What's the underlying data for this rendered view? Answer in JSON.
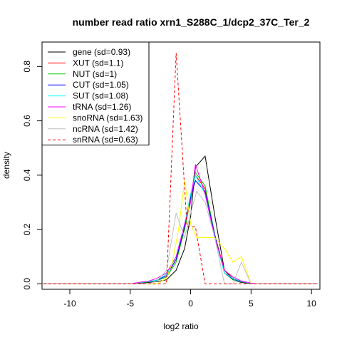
{
  "chart_data": {
    "type": "line",
    "title": "number read ratio xrn1_S288C_1/dcp2_37C_Ter_2",
    "xlabel": "log2 ratio",
    "ylabel": "density",
    "xlim": [
      -12.3,
      10.7
    ],
    "ylim": [
      -0.02,
      0.89
    ],
    "xticks": [
      -10,
      -5,
      0,
      5,
      10
    ],
    "yticks": [
      0.0,
      0.2,
      0.4,
      0.6,
      0.8
    ],
    "grid": false,
    "legend_position": "top-left",
    "series": [
      {
        "name": "gene (sd=0.93)",
        "color": "#000000",
        "dash": "solid",
        "points": [
          [
            -12.2,
            0.0
          ],
          [
            -5.0,
            0.0
          ],
          [
            -4.2,
            0.003
          ],
          [
            -3.5,
            0.005
          ],
          [
            -2.8,
            0.008
          ],
          [
            -2.0,
            0.015
          ],
          [
            -1.2,
            0.05
          ],
          [
            -0.5,
            0.13
          ],
          [
            0.0,
            0.25
          ],
          [
            0.4,
            0.43
          ],
          [
            1.2,
            0.47
          ],
          [
            2.0,
            0.25
          ],
          [
            2.8,
            0.05
          ],
          [
            3.5,
            0.015
          ],
          [
            4.2,
            0.005
          ],
          [
            5.0,
            0.001
          ],
          [
            5.5,
            0.0
          ],
          [
            10.5,
            0.0
          ]
        ]
      },
      {
        "name": "XUT (sd=1.1)",
        "color": "#ff0000",
        "dash": "solid",
        "points": [
          [
            -12.2,
            0.0
          ],
          [
            -5.0,
            0.0
          ],
          [
            -4.2,
            0.005
          ],
          [
            -3.5,
            0.008
          ],
          [
            -2.8,
            0.013
          ],
          [
            -2.0,
            0.03
          ],
          [
            -1.2,
            0.09
          ],
          [
            -0.5,
            0.2
          ],
          [
            0.0,
            0.33
          ],
          [
            0.4,
            0.4
          ],
          [
            1.2,
            0.35
          ],
          [
            2.0,
            0.18
          ],
          [
            2.8,
            0.05
          ],
          [
            3.5,
            0.02
          ],
          [
            4.2,
            0.01
          ],
          [
            5.0,
            0.002
          ],
          [
            5.5,
            0.0
          ],
          [
            10.5,
            0.0
          ]
        ]
      },
      {
        "name": "NUT (sd=1)",
        "color": "#00cc00",
        "dash": "solid",
        "points": [
          [
            -12.2,
            0.0
          ],
          [
            -5.0,
            0.0
          ],
          [
            -4.2,
            0.004
          ],
          [
            -3.5,
            0.007
          ],
          [
            -2.8,
            0.012
          ],
          [
            -2.0,
            0.025
          ],
          [
            -1.2,
            0.08
          ],
          [
            -0.5,
            0.2
          ],
          [
            0.0,
            0.31
          ],
          [
            0.4,
            0.41
          ],
          [
            1.2,
            0.36
          ],
          [
            2.0,
            0.18
          ],
          [
            2.8,
            0.04
          ],
          [
            3.5,
            0.015
          ],
          [
            4.2,
            0.007
          ],
          [
            5.0,
            0.002
          ],
          [
            5.5,
            0.0
          ],
          [
            10.5,
            0.0
          ]
        ]
      },
      {
        "name": "CUT (sd=1.05)",
        "color": "#0000ff",
        "dash": "solid",
        "points": [
          [
            -12.2,
            0.0
          ],
          [
            -5.0,
            0.0
          ],
          [
            -4.2,
            0.005
          ],
          [
            -3.5,
            0.008
          ],
          [
            -2.8,
            0.013
          ],
          [
            -2.0,
            0.03
          ],
          [
            -1.2,
            0.09
          ],
          [
            -0.5,
            0.21
          ],
          [
            0.0,
            0.32
          ],
          [
            0.4,
            0.38
          ],
          [
            1.2,
            0.34
          ],
          [
            2.0,
            0.18
          ],
          [
            2.8,
            0.04
          ],
          [
            3.5,
            0.018
          ],
          [
            4.2,
            0.008
          ],
          [
            5.0,
            0.002
          ],
          [
            5.5,
            0.0
          ],
          [
            10.5,
            0.0
          ]
        ]
      },
      {
        "name": "SUT (sd=1.08)",
        "color": "#00ffff",
        "dash": "solid",
        "points": [
          [
            -12.2,
            0.0
          ],
          [
            -5.0,
            0.0
          ],
          [
            -4.2,
            0.005
          ],
          [
            -3.5,
            0.008
          ],
          [
            -2.8,
            0.014
          ],
          [
            -2.0,
            0.035
          ],
          [
            -1.2,
            0.1
          ],
          [
            -0.5,
            0.22
          ],
          [
            0.0,
            0.33
          ],
          [
            0.4,
            0.4
          ],
          [
            1.2,
            0.33
          ],
          [
            2.0,
            0.17
          ],
          [
            2.8,
            0.04
          ],
          [
            3.5,
            0.02
          ],
          [
            4.2,
            0.009
          ],
          [
            5.0,
            0.002
          ],
          [
            5.5,
            0.0
          ],
          [
            10.5,
            0.0
          ]
        ]
      },
      {
        "name": "tRNA (sd=1.26)",
        "color": "#ff00ff",
        "dash": "solid",
        "points": [
          [
            -12.2,
            0.0
          ],
          [
            -5.0,
            0.0
          ],
          [
            -4.2,
            0.006
          ],
          [
            -3.5,
            0.01
          ],
          [
            -2.8,
            0.02
          ],
          [
            -2.0,
            0.04
          ],
          [
            -1.2,
            0.1
          ],
          [
            -0.5,
            0.22
          ],
          [
            0.0,
            0.3
          ],
          [
            0.4,
            0.44
          ],
          [
            1.2,
            0.33
          ],
          [
            2.0,
            0.17
          ],
          [
            2.8,
            0.05
          ],
          [
            3.5,
            0.025
          ],
          [
            4.2,
            0.01
          ],
          [
            5.0,
            0.003
          ],
          [
            5.5,
            0.0
          ],
          [
            10.5,
            0.0
          ]
        ]
      },
      {
        "name": "snoRNA (sd=1.63)",
        "color": "#ffff00",
        "dash": "solid",
        "points": [
          [
            -12.2,
            0.0
          ],
          [
            -5.0,
            0.0
          ],
          [
            -4.2,
            0.0
          ],
          [
            -3.5,
            0.0
          ],
          [
            -2.8,
            0.0
          ],
          [
            -2.0,
            0.02
          ],
          [
            -1.5,
            0.08
          ],
          [
            -1.0,
            0.2
          ],
          [
            -0.5,
            0.38
          ],
          [
            0.0,
            0.22
          ],
          [
            0.5,
            0.17
          ],
          [
            1.2,
            0.17
          ],
          [
            2.0,
            0.17
          ],
          [
            2.8,
            0.13
          ],
          [
            3.5,
            0.08
          ],
          [
            4.2,
            0.1
          ],
          [
            5.0,
            0.0
          ],
          [
            10.5,
            0.0
          ]
        ]
      },
      {
        "name": "ncRNA (sd=1.42)",
        "color": "#c0c0c0",
        "dash": "solid",
        "points": [
          [
            -12.2,
            0.0
          ],
          [
            -5.0,
            0.0
          ],
          [
            -4.2,
            0.0
          ],
          [
            -3.5,
            0.0
          ],
          [
            -2.8,
            0.01
          ],
          [
            -2.0,
            0.05
          ],
          [
            -1.2,
            0.26
          ],
          [
            -0.5,
            0.17
          ],
          [
            0.0,
            0.26
          ],
          [
            0.5,
            0.34
          ],
          [
            1.2,
            0.3
          ],
          [
            2.0,
            0.17
          ],
          [
            2.8,
            0.0
          ],
          [
            3.5,
            0.0
          ],
          [
            4.2,
            0.08
          ],
          [
            5.0,
            0.0
          ],
          [
            10.5,
            0.0
          ]
        ]
      },
      {
        "name": "snRNA (sd=0.63)",
        "color": "#ff0000",
        "dash": "dashed",
        "points": [
          [
            -12.2,
            0.0
          ],
          [
            -2.0,
            0.0
          ],
          [
            -1.2,
            0.85
          ],
          [
            -0.3,
            0.21
          ],
          [
            0.4,
            0.21
          ],
          [
            1.2,
            0.0
          ],
          [
            10.5,
            0.0
          ]
        ]
      }
    ]
  }
}
